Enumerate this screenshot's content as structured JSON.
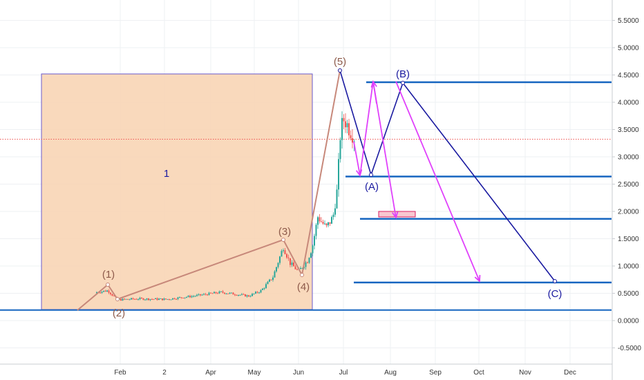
{
  "chart_data": {
    "type": "line",
    "title": "",
    "y_ticks": [
      "5.5000",
      "5.0000",
      "4.5000",
      "4.0000",
      "3.5000",
      "3.0000",
      "2.5000",
      "2.0000",
      "1.5000",
      "1.0000",
      "0.5000",
      "0.0000",
      "-0.5000"
    ],
    "x_ticks": [
      "Feb",
      "2",
      "Apr",
      "May",
      "Jun",
      "Jul",
      "Aug",
      "Sep",
      "Oct",
      "Nov",
      "Dec"
    ],
    "ylim": [
      -0.7,
      5.8
    ],
    "price_badges": [
      {
        "label": "4.3677",
        "value": 4.3677,
        "color": "#1565c0"
      },
      {
        "label": "3.3234",
        "value": 3.3234,
        "color": "#ef5350"
      },
      {
        "label": "2.6396",
        "value": 2.6396,
        "color": "#1565c0"
      },
      {
        "label": "1.8640",
        "value": 1.864,
        "color": "#1565c0"
      },
      {
        "label": "0.6979",
        "value": 0.6979,
        "color": "#1565c0"
      },
      {
        "label": "0.1925",
        "value": 0.1925,
        "color": "#1565c0"
      }
    ],
    "box_label": "1",
    "wave_labels": [
      "(1)",
      "(2)",
      "(3)",
      "(4)",
      "(5)",
      "(A)",
      "(B)",
      "(C)"
    ],
    "colors": {
      "up": "#26a69a",
      "down": "#ef5350",
      "level": "#1565c0",
      "projection": "#e040fb",
      "wave": "#c7887a",
      "box": "#f8d2b0"
    }
  }
}
